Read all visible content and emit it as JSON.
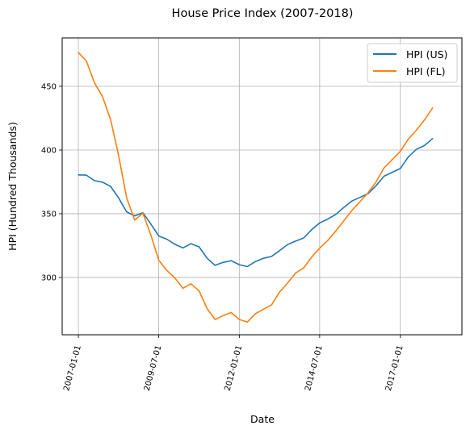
{
  "chart_data": {
    "type": "line",
    "title": "House Price Index (2007-2018)",
    "xlabel": "Date",
    "ylabel": "HPI (Hundred Thousands)",
    "x_ticks": [
      "2007-01-01",
      "2009-07-01",
      "2012-01-01",
      "2014-07-01",
      "2017-01-01"
    ],
    "y_ticks": [
      300,
      350,
      400,
      450
    ],
    "xlim": [
      "2006-07-01",
      "2018-12-01"
    ],
    "ylim": [
      255,
      488
    ],
    "grid": true,
    "legend_position": "top-right",
    "x": [
      "2007-01-01",
      "2007-04-01",
      "2007-07-01",
      "2007-10-01",
      "2008-01-01",
      "2008-04-01",
      "2008-07-01",
      "2008-10-01",
      "2009-01-01",
      "2009-04-01",
      "2009-07-01",
      "2009-10-01",
      "2010-01-01",
      "2010-04-01",
      "2010-07-01",
      "2010-10-01",
      "2011-01-01",
      "2011-04-01",
      "2011-07-01",
      "2011-10-01",
      "2012-01-01",
      "2012-04-01",
      "2012-07-01",
      "2012-10-01",
      "2013-01-01",
      "2013-04-01",
      "2013-07-01",
      "2013-10-01",
      "2014-01-01",
      "2014-04-01",
      "2014-07-01",
      "2014-10-01",
      "2015-01-01",
      "2015-04-01",
      "2015-07-01",
      "2015-10-01",
      "2016-01-01",
      "2016-04-01",
      "2016-07-01",
      "2016-10-01",
      "2017-01-01",
      "2017-04-01",
      "2017-07-01",
      "2017-10-01",
      "2018-01-01"
    ],
    "series": [
      {
        "name": "HPI (US)",
        "color": "#1f77b4",
        "values": [
          380.5,
          380.3,
          376.0,
          374.8,
          371.5,
          362.5,
          351.5,
          348.3,
          350.8,
          342.0,
          332.5,
          330.0,
          326.0,
          323.2,
          326.5,
          324.0,
          315.0,
          309.5,
          311.8,
          313.2,
          310.0,
          308.5,
          312.5,
          315.0,
          316.5,
          321.0,
          325.8,
          328.5,
          331.0,
          337.5,
          342.8,
          345.8,
          349.5,
          355.0,
          360.0,
          362.8,
          365.8,
          372.0,
          379.5,
          382.5,
          385.5,
          394.5,
          400.5,
          403.5,
          409.0
        ]
      },
      {
        "name": "HPI (FL)",
        "color": "#ff7f0e",
        "values": [
          476.5,
          470.0,
          453.0,
          442.0,
          424.0,
          396.0,
          362.5,
          345.0,
          350.5,
          333.5,
          313.5,
          305.5,
          299.5,
          291.5,
          295.0,
          289.5,
          275.5,
          267.0,
          270.0,
          272.5,
          267.0,
          265.0,
          271.5,
          275.0,
          278.5,
          288.5,
          295.5,
          303.5,
          307.5,
          316.0,
          323.0,
          329.0,
          336.5,
          344.5,
          352.5,
          359.5,
          366.5,
          375.0,
          386.0,
          392.5,
          399.0,
          408.5,
          415.5,
          423.5,
          433.0
        ]
      }
    ]
  }
}
